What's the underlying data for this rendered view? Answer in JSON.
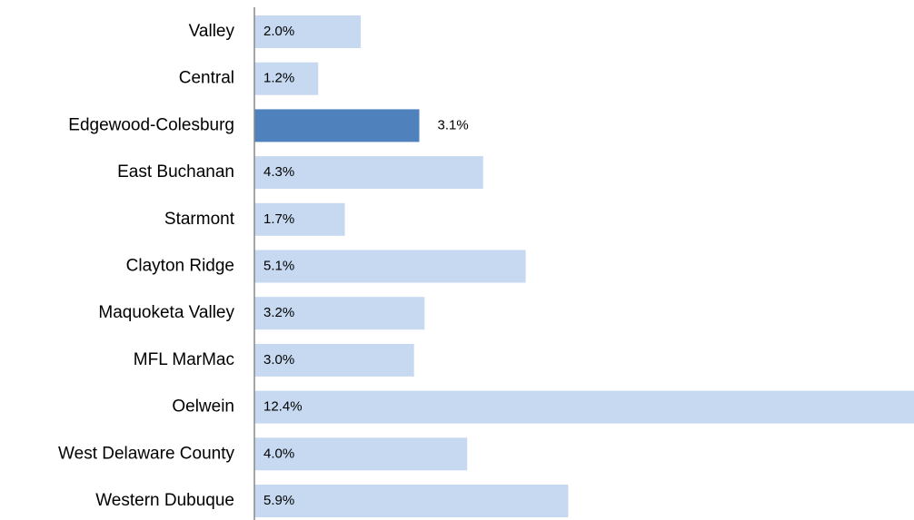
{
  "chart_data": {
    "type": "barh",
    "categories": [
      "Valley",
      "Central",
      "Edgewood-Colesburg",
      "East Buchanan",
      "Starmont",
      "Clayton Ridge",
      "Maquoketa Valley",
      "MFL MarMac",
      "Oelwein",
      "West Delaware County",
      "Western Dubuque"
    ],
    "values": [
      2.0,
      1.2,
      3.1,
      4.3,
      1.7,
      5.1,
      3.2,
      3.0,
      12.4,
      4.0,
      5.9
    ],
    "value_labels": [
      "2.0%",
      "1.2%",
      "3.1%",
      "4.3%",
      "1.7%",
      "5.1%",
      "3.2%",
      "3.0%",
      "12.4%",
      "4.0%",
      "5.9%"
    ],
    "colors": [
      "#c6d9f1",
      "#c6d9f1",
      "#4f81bd",
      "#c6d9f1",
      "#c6d9f1",
      "#c6d9f1",
      "#c6d9f1",
      "#c6d9f1",
      "#c6d9f1",
      "#c6d9f1",
      "#c6d9f1"
    ]
  }
}
